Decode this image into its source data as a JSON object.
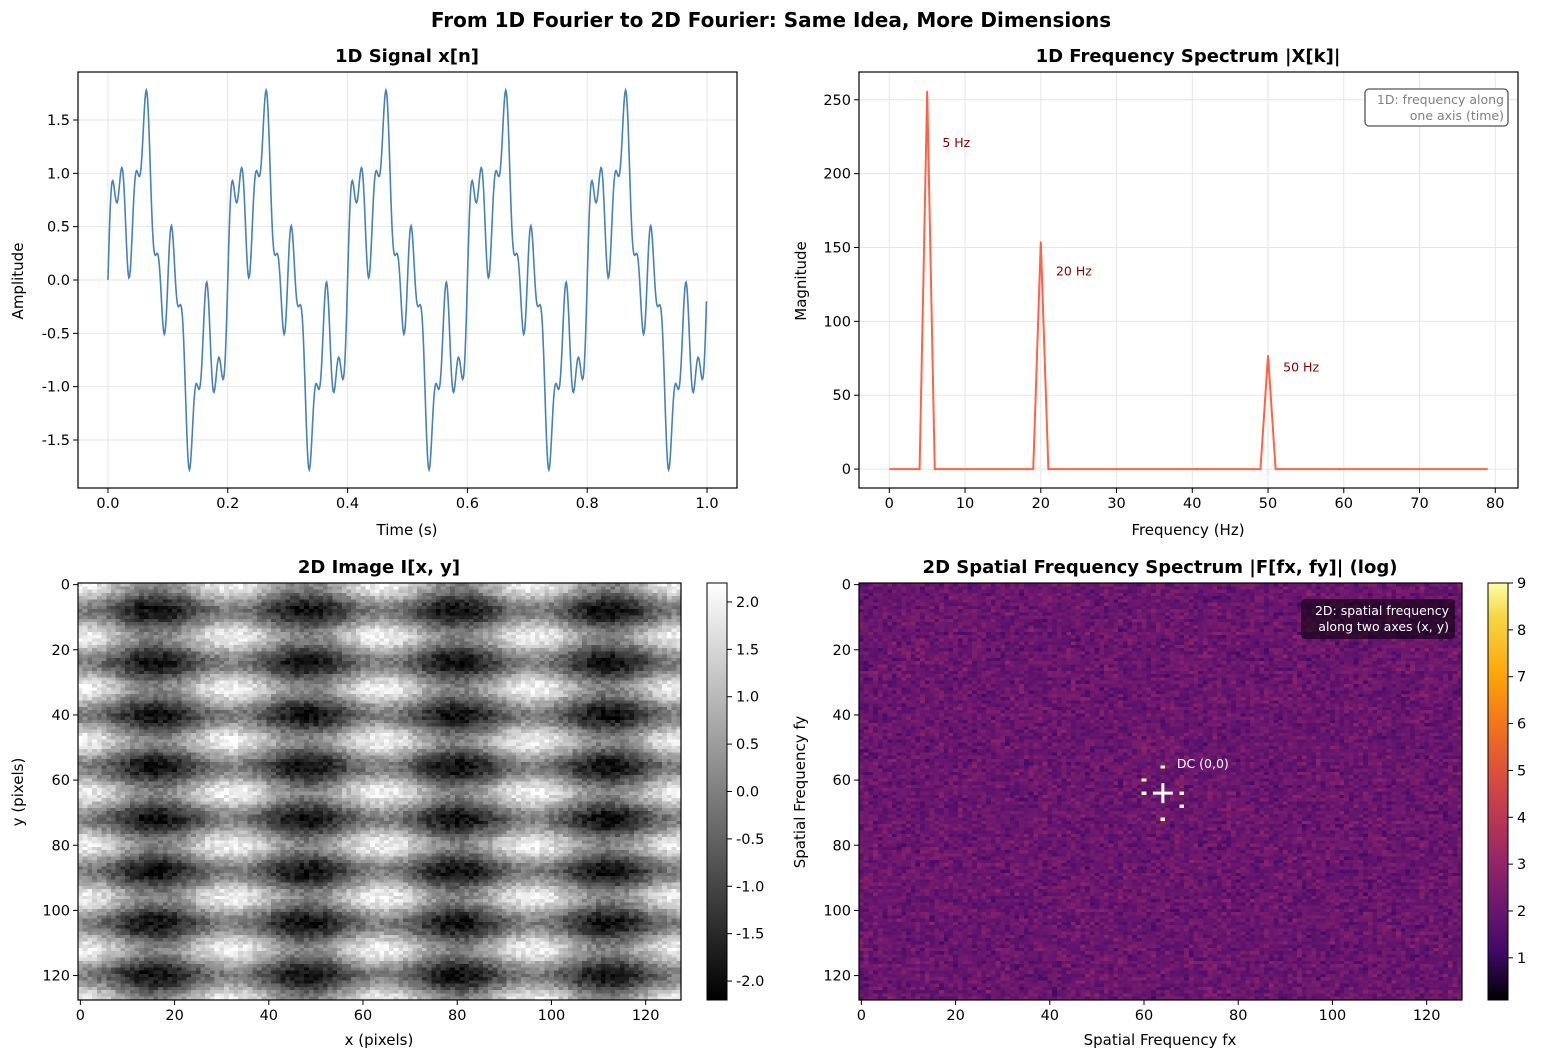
{
  "figure": {
    "suptitle": "From 1D Fourier to 2D Fourier: Same Idea, More Dimensions"
  },
  "colors": {
    "signal": "#4682b4",
    "spectrum": "#ff6347",
    "peak_label": "#8b0000",
    "grid": "#e6e6e6",
    "info_text": "#808080",
    "dc_marker": "#ffffff"
  },
  "chart_data": [
    {
      "id": "signal",
      "type": "line",
      "title": "1D Signal  x[n]",
      "xlabel": "Time (s)",
      "ylabel": "Amplitude",
      "xlim": [
        -0.05,
        1.05
      ],
      "ylim": [
        -1.95,
        1.95
      ],
      "xticks": [
        0.0,
        0.2,
        0.4,
        0.6,
        0.8,
        1.0
      ],
      "xtick_labels": [
        "0.0",
        "0.2",
        "0.4",
        "0.6",
        "0.8",
        "1.0"
      ],
      "yticks": [
        -1.5,
        -1.0,
        -0.5,
        0.0,
        0.5,
        1.0,
        1.5
      ],
      "ytick_labels": [
        "-1.5",
        "-1.0",
        "-0.5",
        "0.0",
        "0.5",
        "1.0",
        "1.5"
      ],
      "grid": true,
      "x_range": [
        0,
        1
      ],
      "n_samples": 1000,
      "components": [
        {
          "freq_hz": 5,
          "amplitude": 1.0
        },
        {
          "freq_hz": 20,
          "amplitude": 0.6
        },
        {
          "freq_hz": 50,
          "amplitude": 0.3
        }
      ]
    },
    {
      "id": "spectrum",
      "type": "line",
      "title": "1D Frequency Spectrum  |X[k]|",
      "xlabel": "Frequency (Hz)",
      "ylabel": "Magnitude",
      "xlim": [
        -4,
        83
      ],
      "ylim": [
        -12.8,
        268.8
      ],
      "xticks": [
        0,
        10,
        20,
        30,
        40,
        50,
        60,
        70,
        80
      ],
      "xtick_labels": [
        "0",
        "10",
        "20",
        "30",
        "40",
        "50",
        "60",
        "70",
        "80"
      ],
      "yticks": [
        0,
        50,
        100,
        150,
        200,
        250
      ],
      "ytick_labels": [
        "0",
        "50",
        "100",
        "150",
        "200",
        "250"
      ],
      "grid": true,
      "peaks": [
        {
          "freq_hz": 5,
          "magnitude": 256,
          "label": "5 Hz",
          "label_x": 7,
          "label_y": 218
        },
        {
          "freq_hz": 20,
          "magnitude": 154,
          "label": "20 Hz",
          "label_x": 22,
          "label_y": 131
        },
        {
          "freq_hz": 50,
          "magnitude": 77,
          "label": "50 Hz",
          "label_x": 52,
          "label_y": 66
        }
      ],
      "freq_max": 79,
      "info_box": [
        "1D: frequency along",
        "one axis (time)"
      ],
      "info_box_placement": "top-right"
    },
    {
      "id": "image2d",
      "type": "heatmap",
      "title": "2D Image  I[x, y]",
      "xlabel": "x (pixels)",
      "ylabel": "y (pixels)",
      "xlim": [
        -0.5,
        127.5
      ],
      "ylim": [
        127.5,
        -0.5
      ],
      "xticks": [
        0,
        20,
        40,
        60,
        80,
        100,
        120
      ],
      "xtick_labels": [
        "0",
        "20",
        "40",
        "60",
        "80",
        "100",
        "120"
      ],
      "yticks": [
        0,
        20,
        40,
        60,
        80,
        100,
        120
      ],
      "ytick_labels": [
        "0",
        "20",
        "40",
        "60",
        "80",
        "100",
        "120"
      ],
      "colormap": "gray",
      "clim": [
        -2.2,
        2.2
      ],
      "colorbar_ticks": [
        2.0,
        1.5,
        1.0,
        0.5,
        0.0,
        -0.5,
        -1.0,
        -1.5,
        -2.0
      ],
      "colorbar_tick_labels": [
        "2.0",
        "1.5",
        "1.0",
        "0.5",
        "0.0",
        "-0.5",
        "-1.0",
        "-1.5",
        "-2.0"
      ],
      "size": [
        128,
        128
      ],
      "cycles_x": 4,
      "cycles_y": 8,
      "noise": 0.25
    },
    {
      "id": "spectrum2d",
      "type": "heatmap",
      "title": "2D Spatial Frequency Spectrum  |F[fx, fy]|  (log)",
      "xlabel": "Spatial Frequency fx",
      "ylabel": "Spatial Frequency fy",
      "xlim": [
        -0.5,
        127.5
      ],
      "ylim": [
        127.5,
        -0.5
      ],
      "xticks": [
        0,
        20,
        40,
        60,
        80,
        100,
        120
      ],
      "xtick_labels": [
        "0",
        "20",
        "40",
        "60",
        "80",
        "100",
        "120"
      ],
      "yticks": [
        0,
        20,
        40,
        60,
        80,
        100,
        120
      ],
      "ytick_labels": [
        "0",
        "20",
        "40",
        "60",
        "80",
        "100",
        "120"
      ],
      "colormap": "inferno",
      "clim": [
        0.1,
        9
      ],
      "colorbar_ticks": [
        9,
        8,
        7,
        6,
        5,
        4,
        3,
        2,
        1
      ],
      "colorbar_tick_labels": [
        "9",
        "8",
        "7",
        "6",
        "5",
        "4",
        "3",
        "2",
        "1"
      ],
      "background_level": 3.0,
      "peak_level": 9,
      "bright_pixels": [
        [
          64,
          56
        ],
        [
          64,
          72
        ],
        [
          60,
          60
        ],
        [
          68,
          68
        ],
        [
          60,
          64
        ],
        [
          68,
          64
        ]
      ],
      "dc": [
        64,
        64
      ],
      "dc_label": "DC (0,0)",
      "info_box": [
        "2D: spatial frequency",
        "along two axes (x, y)"
      ],
      "info_box_placement": "top-right"
    }
  ]
}
